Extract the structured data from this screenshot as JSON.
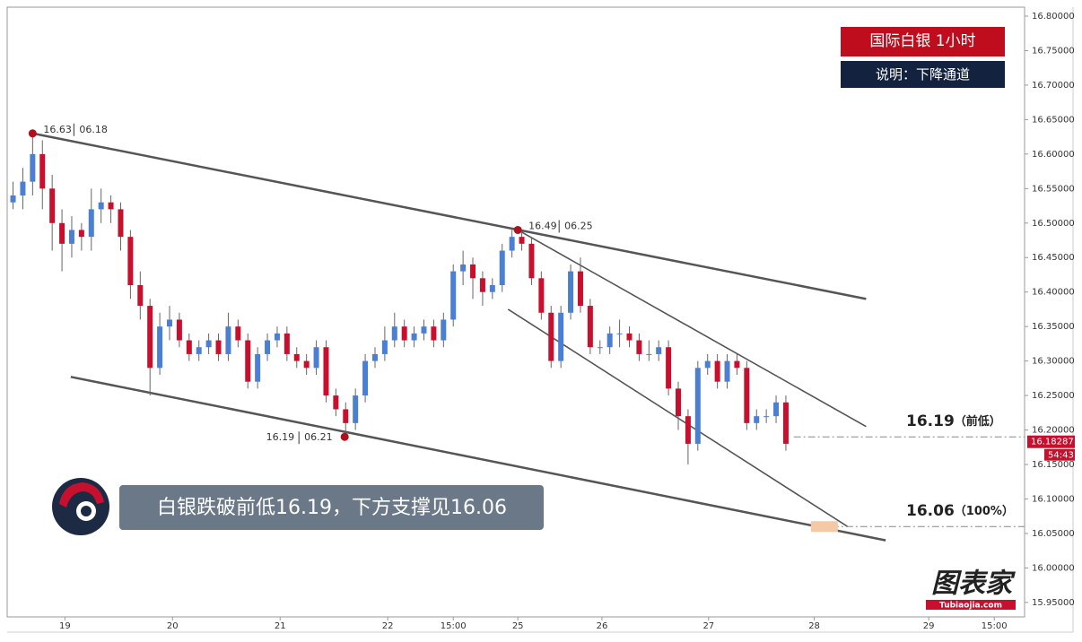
{
  "chart_data": {
    "type": "candlestick",
    "title": "国际白银  1小时",
    "subtitle": "说明：下降通道",
    "banner": "白银跌破前低16.19，下方支撑见16.06",
    "logo": {
      "name": "图表家",
      "site": "Tubiaojia.com"
    },
    "up_color": "#4a7fd4",
    "down_color": "#c8102e",
    "open": [
      16.53,
      16.54,
      16.56,
      16.6,
      16.55,
      16.5,
      16.47,
      16.49,
      16.48,
      16.52,
      16.53,
      16.52,
      16.48,
      16.41,
      16.38,
      16.29,
      16.35,
      16.36,
      16.33,
      16.31,
      16.32,
      16.33,
      16.31,
      16.35,
      16.33,
      16.27,
      16.31,
      16.33,
      16.34,
      16.31,
      16.3,
      16.29,
      16.32,
      16.25,
      16.23,
      16.21,
      16.25,
      16.3,
      16.31,
      16.33,
      16.35,
      16.33,
      16.34,
      16.35,
      16.33,
      16.36,
      16.43,
      16.44,
      16.42,
      16.4,
      16.41,
      16.46,
      16.48,
      16.47,
      16.42,
      16.37,
      16.3,
      16.37,
      16.43,
      16.38,
      16.32,
      16.32,
      16.34,
      16.34,
      16.33,
      16.31,
      16.31,
      16.32,
      16.26,
      16.22,
      16.18,
      16.29,
      16.3,
      16.27,
      16.3,
      16.29,
      16.21,
      16.22,
      16.22,
      16.24
    ],
    "high": [
      16.56,
      16.58,
      16.63,
      16.62,
      16.57,
      16.52,
      16.51,
      16.5,
      16.55,
      16.55,
      16.54,
      16.53,
      16.49,
      16.43,
      16.39,
      16.37,
      16.38,
      16.37,
      16.34,
      16.33,
      16.34,
      16.34,
      16.37,
      16.36,
      16.34,
      16.32,
      16.34,
      16.35,
      16.35,
      16.32,
      16.31,
      16.33,
      16.33,
      16.26,
      16.24,
      16.26,
      16.31,
      16.32,
      16.35,
      16.37,
      16.36,
      16.35,
      16.36,
      16.36,
      16.37,
      16.44,
      16.46,
      16.45,
      16.43,
      16.42,
      16.47,
      16.49,
      16.49,
      16.48,
      16.43,
      16.38,
      16.38,
      16.44,
      16.45,
      16.39,
      16.33,
      16.35,
      16.36,
      16.35,
      16.34,
      16.33,
      16.33,
      16.33,
      16.27,
      16.23,
      16.3,
      16.31,
      16.31,
      16.31,
      16.31,
      16.3,
      16.23,
      16.23,
      16.25,
      16.25
    ],
    "low": [
      16.52,
      16.52,
      16.54,
      16.52,
      16.46,
      16.43,
      16.45,
      16.46,
      16.46,
      16.5,
      16.5,
      16.46,
      16.39,
      16.36,
      16.25,
      16.28,
      16.33,
      16.32,
      16.3,
      16.3,
      16.31,
      16.3,
      16.3,
      16.32,
      16.26,
      16.26,
      16.3,
      16.32,
      16.3,
      16.29,
      16.28,
      16.28,
      16.24,
      16.22,
      16.19,
      16.2,
      16.24,
      16.29,
      16.3,
      16.32,
      16.32,
      16.32,
      16.33,
      16.32,
      16.32,
      16.35,
      16.41,
      16.39,
      16.38,
      16.39,
      16.4,
      16.45,
      16.46,
      16.41,
      16.36,
      16.29,
      16.29,
      16.36,
      16.37,
      16.31,
      16.31,
      16.31,
      16.32,
      16.32,
      16.3,
      16.3,
      16.3,
      16.25,
      16.2,
      16.15,
      16.17,
      16.28,
      16.26,
      16.26,
      16.28,
      16.2,
      16.2,
      16.21,
      16.21,
      16.17
    ],
    "close": [
      16.54,
      16.56,
      16.6,
      16.55,
      16.5,
      16.47,
      16.49,
      16.48,
      16.52,
      16.53,
      16.52,
      16.48,
      16.41,
      16.38,
      16.29,
      16.35,
      16.36,
      16.33,
      16.31,
      16.32,
      16.33,
      16.31,
      16.35,
      16.33,
      16.27,
      16.31,
      16.33,
      16.34,
      16.31,
      16.3,
      16.29,
      16.32,
      16.25,
      16.23,
      16.21,
      16.25,
      16.3,
      16.31,
      16.33,
      16.35,
      16.33,
      16.34,
      16.35,
      16.33,
      16.36,
      16.43,
      16.44,
      16.42,
      16.4,
      16.41,
      16.46,
      16.48,
      16.47,
      16.42,
      16.37,
      16.3,
      16.37,
      16.43,
      16.38,
      16.32,
      16.32,
      16.34,
      16.34,
      16.33,
      16.31,
      16.31,
      16.32,
      16.26,
      16.22,
      16.18,
      16.29,
      16.3,
      16.27,
      16.3,
      16.29,
      16.21,
      16.22,
      16.22,
      16.24,
      16.18
    ],
    "xlim": [
      -0.6,
      103.4
    ],
    "xticks": [
      {
        "value": 5.3,
        "label": "19"
      },
      {
        "value": 16.3,
        "label": "20"
      },
      {
        "value": 27.3,
        "label": "21"
      },
      {
        "value": 38.3,
        "label": "22"
      },
      {
        "value": 45,
        "label": "15:00"
      },
      {
        "value": 51.6,
        "label": "25"
      },
      {
        "value": 60.2,
        "label": "26"
      },
      {
        "value": 71.1,
        "label": "27"
      },
      {
        "value": 81.9,
        "label": "28"
      },
      {
        "value": 93.6,
        "label": "29"
      },
      {
        "value": 100.3,
        "label": "15:00"
      }
    ],
    "ylim": [
      15.929,
      16.813
    ],
    "yticks": [
      {
        "value": 15.95,
        "label": "15.95000"
      },
      {
        "value": 16.0,
        "label": "16.00000"
      },
      {
        "value": 16.05,
        "label": "16.05000"
      },
      {
        "value": 16.1,
        "label": "16.10000"
      },
      {
        "value": 16.15,
        "label": "16.15000"
      },
      {
        "value": 16.2,
        "label": "16.20000"
      },
      {
        "value": 16.25,
        "label": "16.25000"
      },
      {
        "value": 16.3,
        "label": "16.30000"
      },
      {
        "value": 16.35,
        "label": "16.35000"
      },
      {
        "value": 16.4,
        "label": "16.40000"
      },
      {
        "value": 16.45,
        "label": "16.45000"
      },
      {
        "value": 16.5,
        "label": "16.50000"
      },
      {
        "value": 16.55,
        "label": "16.55000"
      },
      {
        "value": 16.6,
        "label": "16.60000"
      },
      {
        "value": 16.65,
        "label": "16.65000"
      },
      {
        "value": 16.7,
        "label": "16.70000"
      },
      {
        "value": 16.75,
        "label": "16.75000"
      },
      {
        "value": 16.8,
        "label": "16.80000"
      }
    ],
    "trendlines": [
      {
        "x": [
          2,
          87.2
        ],
        "y": [
          16.63,
          16.39
        ]
      },
      {
        "x": [
          5.9,
          89.2
        ],
        "y": [
          16.277,
          16.04
        ]
      },
      {
        "x": [
          51.6,
          87.2
        ],
        "y": [
          16.49,
          16.205
        ]
      },
      {
        "x": [
          50.6,
          85.3
        ],
        "y": [
          16.375,
          16.06
        ]
      }
    ],
    "pivots": [
      {
        "x": 2,
        "y": 16.63,
        "date": "06.18"
      },
      {
        "x": 51.6,
        "y": 16.49,
        "date": "06.25"
      },
      {
        "x": 33.9,
        "y": 16.19,
        "date": "06.21"
      }
    ],
    "levels": [
      {
        "x": 79.8,
        "value": 16.19,
        "note": "（前低）"
      },
      {
        "x": 82.2,
        "value": 16.06,
        "note": "（100%）"
      }
    ],
    "last_price": {
      "value": 16.18287,
      "countdown": "54:43"
    }
  }
}
